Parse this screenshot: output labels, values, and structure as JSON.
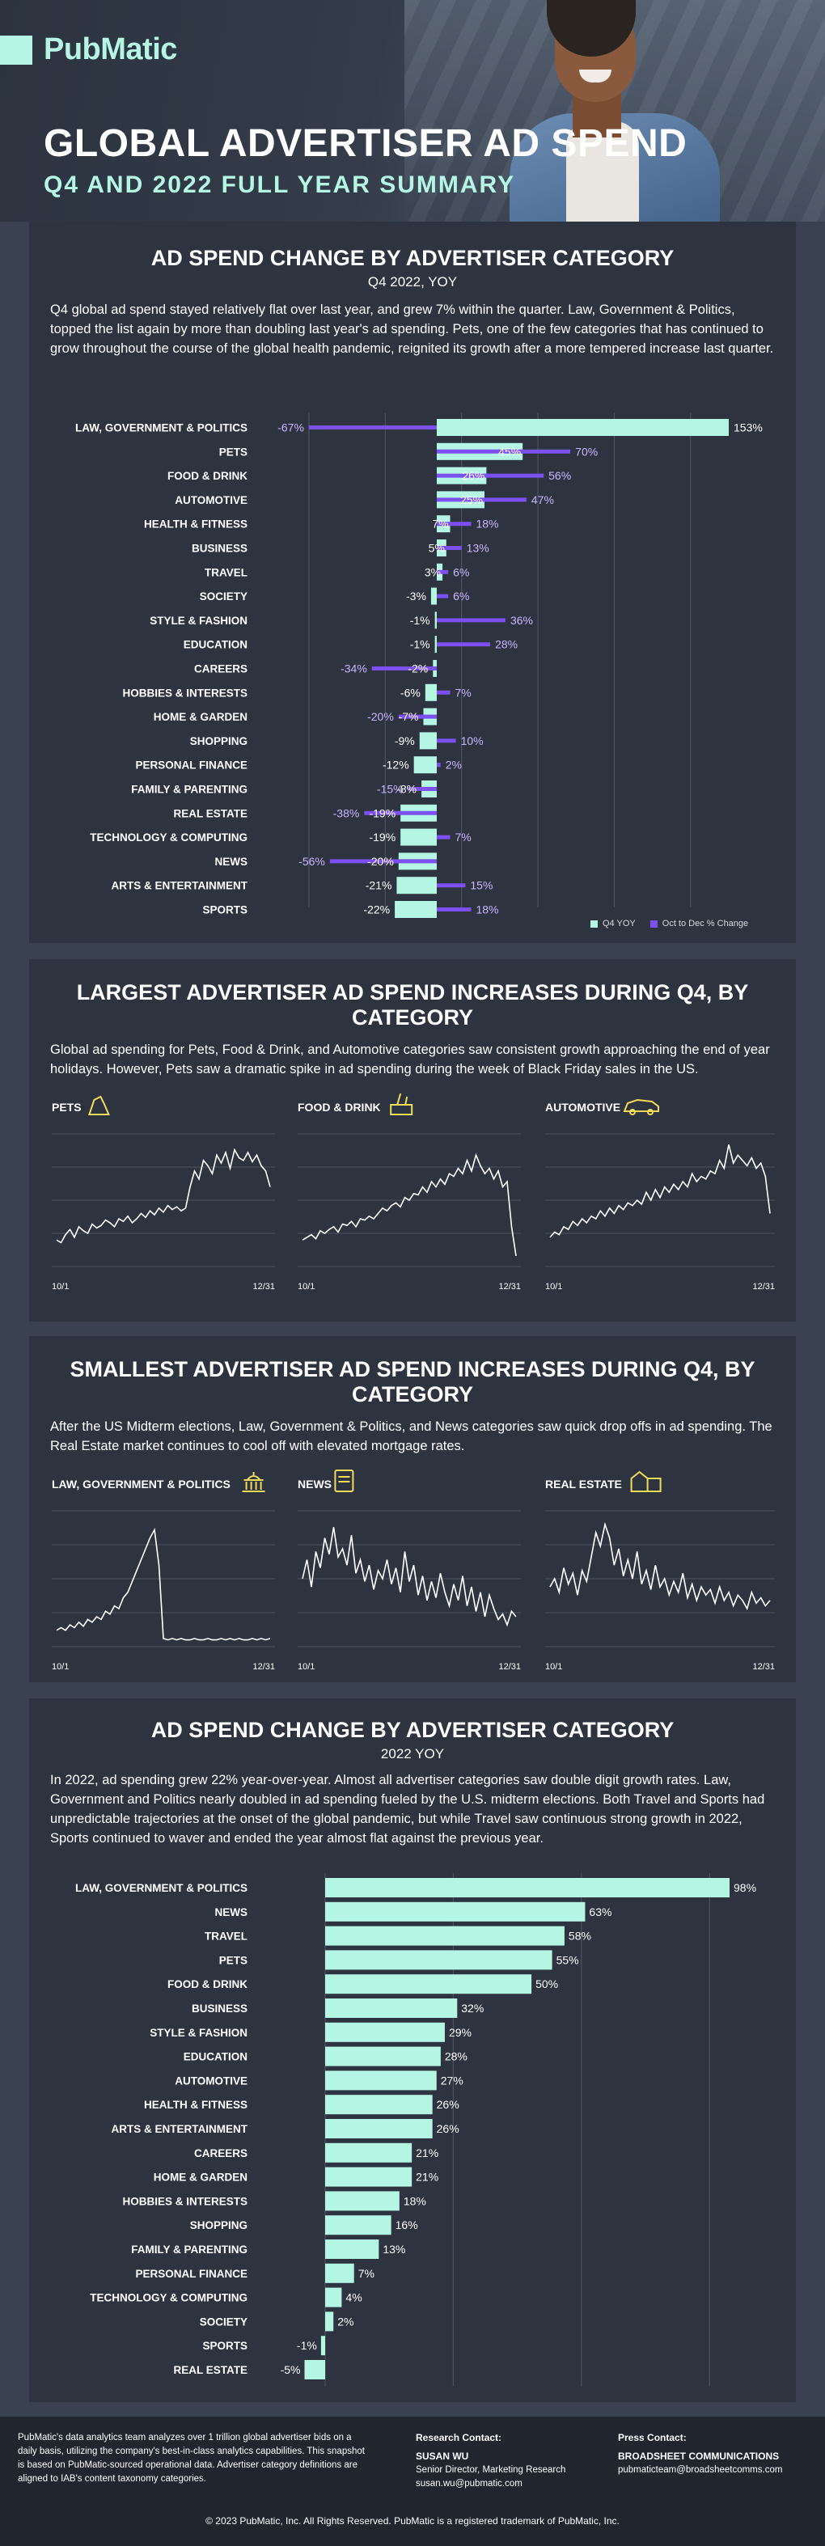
{
  "brand": {
    "logo": "PubMatic",
    "accent": "#b5f5e4",
    "bar_color": "#b5f5e4",
    "line_color": "#7b4ff0"
  },
  "hero": {
    "title": "GLOBAL ADVERTISER AD SPEND",
    "subtitle": "Q4 AND 2022 FULL YEAR SUMMARY"
  },
  "section1": {
    "title": "AD SPEND CHANGE BY ADVERTISER CATEGORY",
    "subtitle": "Q4 2022, YOY",
    "text": "Q4 global ad spend stayed relatively flat over last year, and grew 7% within the quarter. Law, Government & Politics, topped the list again by more than doubling last year's ad spending. Pets, one of the few categories that has continued to grow throughout the course of the global health pandemic, reignited its growth after a more tempered increase last quarter.",
    "legend": [
      "Q4 YOY",
      "Oct to Dec % Change"
    ]
  },
  "section2": {
    "title": "LARGEST ADVERTISER AD SPEND INCREASES DURING Q4, BY CATEGORY",
    "text": "Global ad spending for Pets, Food & Drink, and Automotive categories saw consistent growth approaching the end of year holidays. However, Pets saw a dramatic spike in ad spending during the week of Black Friday sales in the US."
  },
  "section3": {
    "title": "SMALLEST ADVERTISER AD SPEND INCREASES DURING Q4, BY CATEGORY",
    "text": "After the US Midterm elections, Law, Government & Politics, and News categories saw quick drop offs in ad spending. The Real Estate market continues to cool off with elevated mortgage rates."
  },
  "section4": {
    "title": "AD SPEND CHANGE BY ADVERTISER CATEGORY",
    "subtitle": "2022 YOY",
    "text": "In 2022, ad spending grew 22% year-over-year. Almost all advertiser categories saw double digit growth rates. Law, Government and Politics nearly doubled in ad spending fueled by the U.S. midterm elections. Both Travel and Sports had unpredictable trajectories at the onset of the global pandemic, but while Travel saw continuous strong growth in 2022, Sports continued to waver and ended the year almost flat against the previous year."
  },
  "footer": {
    "about": "PubMatic's data analytics team analyzes over 1 trillion global advertiser bids on a daily basis, utilizing the company's best-in-class analytics capabilities. This snapshot is based on PubMatic-sourced operational data. Advertiser category definitions are aligned to IAB's content taxonomy categories.",
    "research_heading": "Research Contact:",
    "research_name": "SUSAN WU",
    "research_role": "Senior Director, Marketing Research",
    "research_email": "susan.wu@pubmatic.com",
    "press_heading": "Press Contact:",
    "press_name": "BROADSHEET COMMUNICATIONS",
    "press_email": "pubmaticteam@broadsheetcomms.com",
    "copyright": "© 2023 PubMatic, Inc. All Rights Reserved. PubMatic is a registered trademark of PubMatic, Inc."
  },
  "chart_data": [
    {
      "type": "bar",
      "title": "AD SPEND CHANGE BY ADVERTISER CATEGORY",
      "subtitle": "Q4 2022, YOY",
      "categories": [
        "LAW, GOVERNMENT & POLITICS",
        "PETS",
        "FOOD & DRINK",
        "AUTOMOTIVE",
        "HEALTH & FITNESS",
        "BUSINESS",
        "TRAVEL",
        "SOCIETY",
        "STYLE & FASHION",
        "EDUCATION",
        "CAREERS",
        "HOBBIES & INTERESTS",
        "HOME & GARDEN",
        "SHOPPING",
        "PERSONAL FINANCE",
        "FAMILY & PARENTING",
        "REAL ESTATE",
        "TECHNOLOGY & COMPUTING",
        "NEWS",
        "ARTS & ENTERTAINMENT",
        "SPORTS"
      ],
      "series": [
        {
          "name": "Q4 YOY",
          "values": [
            153,
            45,
            26,
            25,
            7,
            5,
            3,
            -3,
            -1,
            -1,
            -2,
            -6,
            -7,
            -9,
            -12,
            -8,
            -19,
            -19,
            -20,
            -21,
            -22
          ],
          "labels": [
            "153%",
            "45%",
            "26%",
            "25%",
            "7%",
            "5%",
            "3%",
            "-3%",
            "-1%",
            "-1%",
            "-2%",
            "-6%",
            "-7%",
            "-9%",
            "-12%",
            "-8%",
            "-19%",
            "-19%",
            "-20%",
            "-21%",
            "-22%"
          ]
        },
        {
          "name": "Oct to Dec % Change",
          "values": [
            -67,
            70,
            56,
            47,
            18,
            13,
            6,
            6,
            36,
            28,
            -34,
            7,
            -20,
            10,
            2,
            -15,
            -38,
            7,
            -56,
            15,
            18
          ],
          "labels": [
            "-67%",
            "70%",
            "56%",
            "47%",
            "18%",
            "13%",
            "6%",
            "6%",
            "36%",
            "28%",
            "-34%",
            "7%",
            "-20%",
            "10%",
            "2%",
            "-15%",
            "-38%",
            "7%",
            "-56%",
            "15%",
            "18%"
          ]
        }
      ]
    },
    {
      "type": "line",
      "title": "PETS",
      "x_start": "10/1",
      "x_end": "12/31",
      "y": [
        20,
        18,
        24,
        28,
        22,
        30,
        27,
        25,
        32,
        29,
        31,
        35,
        33,
        30,
        36,
        34,
        38,
        33,
        36,
        40,
        37,
        42,
        39,
        44,
        41,
        46,
        43,
        45,
        42,
        44,
        60,
        72,
        66,
        80,
        76,
        70,
        84,
        78,
        86,
        74,
        88,
        82,
        80,
        86,
        79,
        84,
        76,
        72,
        60
      ]
    },
    {
      "type": "line",
      "title": "FOOD & DRINK",
      "x_start": "10/1",
      "x_end": "12/31",
      "y": [
        20,
        22,
        24,
        21,
        27,
        25,
        28,
        30,
        26,
        32,
        31,
        34,
        30,
        36,
        35,
        38,
        36,
        40,
        44,
        42,
        46,
        48,
        45,
        52,
        50,
        55,
        54,
        60,
        56,
        64,
        60,
        66,
        62,
        70,
        68,
        74,
        70,
        80,
        72,
        84,
        76,
        70,
        74,
        66,
        72,
        60,
        64,
        30,
        8
      ]
    },
    {
      "type": "line",
      "title": "AUTOMOTIVE",
      "x_start": "10/1",
      "x_end": "12/31",
      "y": [
        22,
        26,
        24,
        30,
        28,
        34,
        31,
        36,
        33,
        38,
        36,
        42,
        38,
        44,
        40,
        46,
        43,
        48,
        46,
        50,
        47,
        56,
        50,
        58,
        52,
        60,
        56,
        62,
        58,
        64,
        60,
        70,
        64,
        68,
        66,
        72,
        70,
        80,
        74,
        92,
        78,
        84,
        80,
        76,
        82,
        74,
        78,
        68,
        40
      ]
    },
    {
      "type": "line",
      "title": "LAW, GOVERNMENT & POLITICS",
      "x_start": "10/1",
      "x_end": "12/31",
      "y": [
        12,
        14,
        12,
        16,
        14,
        18,
        15,
        20,
        18,
        22,
        20,
        26,
        24,
        30,
        28,
        36,
        40,
        48,
        56,
        64,
        72,
        80,
        86,
        60,
        6,
        5,
        6,
        5,
        6,
        5,
        5,
        6,
        5,
        5,
        6,
        5,
        5,
        6,
        5,
        6,
        5,
        6,
        5,
        5,
        6,
        5,
        6,
        5,
        6
      ]
    },
    {
      "type": "line",
      "title": "NEWS",
      "x_start": "10/1",
      "x_end": "12/31",
      "y": [
        50,
        64,
        44,
        70,
        58,
        80,
        68,
        88,
        66,
        72,
        60,
        82,
        54,
        64,
        48,
        60,
        42,
        56,
        50,
        64,
        46,
        58,
        40,
        70,
        48,
        60,
        38,
        52,
        34,
        48,
        36,
        54,
        40,
        30,
        46,
        34,
        52,
        30,
        44,
        26,
        40,
        22,
        38,
        28,
        20,
        24,
        16,
        26,
        22
      ]
    },
    {
      "type": "line",
      "title": "REAL ESTATE",
      "x_start": "10/1",
      "x_end": "12/31",
      "y": [
        44,
        50,
        40,
        58,
        46,
        54,
        38,
        56,
        48,
        66,
        84,
        74,
        90,
        80,
        60,
        72,
        52,
        64,
        50,
        70,
        46,
        56,
        42,
        60,
        44,
        50,
        38,
        48,
        40,
        54,
        36,
        46,
        34,
        44,
        38,
        42,
        32,
        44,
        34,
        40,
        30,
        38,
        34,
        28,
        40,
        32,
        36,
        30,
        34
      ]
    },
    {
      "type": "bar",
      "title": "AD SPEND CHANGE BY ADVERTISER CATEGORY",
      "subtitle": "2022 YOY",
      "categories": [
        "LAW, GOVERNMENT & POLITICS",
        "NEWS",
        "TRAVEL",
        "PETS",
        "FOOD & DRINK",
        "BUSINESS",
        "STYLE & FASHION",
        "EDUCATION",
        "AUTOMOTIVE",
        "HEALTH & FITNESS",
        "ARTS & ENTERTAINMENT",
        "CAREERS",
        "HOME & GARDEN",
        "HOBBIES & INTERESTS",
        "SHOPPING",
        "FAMILY & PARENTING",
        "PERSONAL FINANCE",
        "TECHNOLOGY & COMPUTING",
        "SOCIETY",
        "SPORTS",
        "REAL ESTATE"
      ],
      "values": [
        98,
        63,
        58,
        55,
        50,
        32,
        29,
        28,
        27,
        26,
        26,
        21,
        21,
        18,
        16,
        13,
        7,
        4,
        2,
        -1,
        -5
      ],
      "labels": [
        "98%",
        "63%",
        "58%",
        "55%",
        "50%",
        "32%",
        "29%",
        "28%",
        "27%",
        "26%",
        "26%",
        "21%",
        "21%",
        "18%",
        "16%",
        "13%",
        "7%",
        "4%",
        "2%",
        "-1%",
        "-5%"
      ]
    }
  ]
}
